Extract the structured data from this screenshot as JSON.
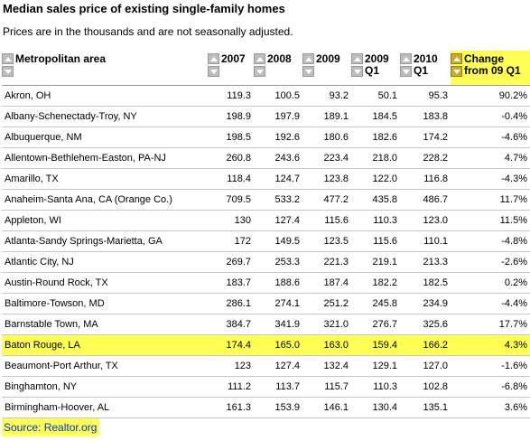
{
  "title": "Median sales price of existing single-family homes",
  "subtitle": "Prices are in the thousands and are not seasonally adjusted.",
  "headers": {
    "metro": "Metropolitan area",
    "y2007": "2007",
    "y2008": "2008",
    "y2009": "2009",
    "q2009_line1": "2009",
    "q2009_line2": "Q1",
    "q2010_line1": "2010",
    "q2010_line2": "Q1",
    "change_line1": "Change",
    "change_line2": "from 09 Q1"
  },
  "rows": [
    {
      "metro": "Akron, OH",
      "y2007": "119.3",
      "y2008": "100.5",
      "y2009": "93.2",
      "q2009": "50.1",
      "q2010": "95.3",
      "change": "90.2%"
    },
    {
      "metro": "Albany-Schenectady-Troy, NY",
      "y2007": "198.9",
      "y2008": "197.9",
      "y2009": "189.1",
      "q2009": "184.5",
      "q2010": "183.8",
      "change": "-0.4%"
    },
    {
      "metro": "Albuquerque, NM",
      "y2007": "198.5",
      "y2008": "192.6",
      "y2009": "180.6",
      "q2009": "182.6",
      "q2010": "174.2",
      "change": "-4.6%"
    },
    {
      "metro": "Allentown-Bethlehem-Easton, PA-NJ",
      "y2007": "260.8",
      "y2008": "243.6",
      "y2009": "223.4",
      "q2009": "218.0",
      "q2010": "228.2",
      "change": "4.7%"
    },
    {
      "metro": "Amarillo, TX",
      "y2007": "118.4",
      "y2008": "124.7",
      "y2009": "123.8",
      "q2009": "122.0",
      "q2010": "116.8",
      "change": "-4.3%"
    },
    {
      "metro": "Anaheim-Santa Ana, CA (Orange Co.)",
      "y2007": "709.5",
      "y2008": "533.2",
      "y2009": "477.2",
      "q2009": "435.8",
      "q2010": "486.7",
      "change": "11.7%"
    },
    {
      "metro": "Appleton, WI",
      "y2007": "130",
      "y2008": "127.4",
      "y2009": "115.6",
      "q2009": "110.3",
      "q2010": "123.0",
      "change": "11.5%"
    },
    {
      "metro": "Atlanta-Sandy Springs-Marietta, GA",
      "y2007": "172",
      "y2008": "149.5",
      "y2009": "123.5",
      "q2009": "115.6",
      "q2010": "110.1",
      "change": "-4.8%"
    },
    {
      "metro": "Atlantic City, NJ",
      "y2007": "269.7",
      "y2008": "253.3",
      "y2009": "221.3",
      "q2009": "219.1",
      "q2010": "213.3",
      "change": "-2.6%"
    },
    {
      "metro": "Austin-Round Rock, TX",
      "y2007": "183.7",
      "y2008": "188.6",
      "y2009": "187.4",
      "q2009": "182.2",
      "q2010": "182.5",
      "change": "0.2%"
    },
    {
      "metro": "Baltimore-Towson, MD",
      "y2007": "286.1",
      "y2008": "274.1",
      "y2009": "251.2",
      "q2009": "245.8",
      "q2010": "234.9",
      "change": "-4.4%"
    },
    {
      "metro": "Barnstable Town, MA",
      "y2007": "384.7",
      "y2008": "341.9",
      "y2009": "321.0",
      "q2009": "276.7",
      "q2010": "325.6",
      "change": "17.7%"
    },
    {
      "metro": "Baton Rouge, LA",
      "y2007": "174.4",
      "y2008": "165.0",
      "y2009": "163.0",
      "q2009": "159.4",
      "q2010": "166.2",
      "change": "4.3%",
      "highlight": true
    },
    {
      "metro": "Beaumont-Port Arthur, TX",
      "y2007": "123",
      "y2008": "127.4",
      "y2009": "132.4",
      "q2009": "129.1",
      "q2010": "127.0",
      "change": "-1.6%"
    },
    {
      "metro": "Binghamton, NY",
      "y2007": "111.2",
      "y2008": "113.7",
      "y2009": "115.7",
      "q2009": "110.3",
      "q2010": "102.8",
      "change": "-6.8%"
    },
    {
      "metro": "Birmingham-Hoover, AL",
      "y2007": "161.3",
      "y2008": "153.9",
      "y2009": "146.1",
      "q2009": "130.4",
      "q2010": "135.1",
      "change": "3.6%"
    }
  ],
  "source": "Source: Realtor.org",
  "colors": {
    "highlight": "#ffff55",
    "source_text": "#0033cc"
  }
}
